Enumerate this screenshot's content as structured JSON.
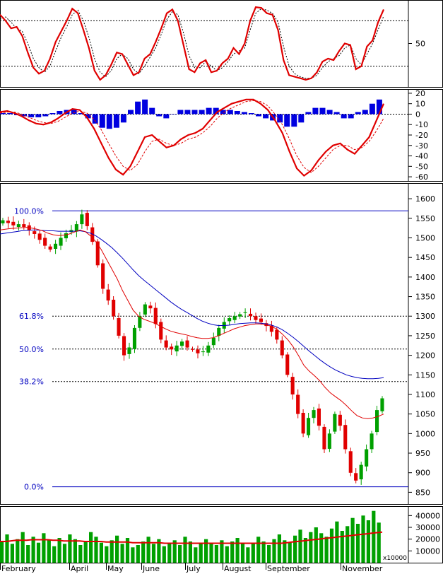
{
  "colors": {
    "up": "#00a000",
    "down": "#e00000",
    "ma_fast": "#e00000",
    "ma_slow": "#0000c0",
    "fib": "#0000c0",
    "hist": "#0000e0",
    "osc_main": "#e00000",
    "frame": "#000000"
  },
  "chart_data": [
    {
      "type": "line",
      "panel": "stochastic",
      "ylim": [
        0,
        100
      ],
      "y_ticks": [
        50
      ],
      "reference_lines": [
        80,
        20
      ],
      "series": [
        {
          "values": [
            88,
            80,
            70,
            72,
            60,
            38,
            18,
            10,
            14,
            30,
            52,
            66,
            80,
            96,
            90,
            68,
            44,
            14,
            2,
            8,
            22,
            38,
            36,
            22,
            8,
            12,
            30,
            36,
            52,
            70,
            90,
            95,
            80,
            48,
            16,
            12,
            24,
            28,
            12,
            14,
            24,
            30,
            44,
            36,
            50,
            80,
            98,
            97,
            90,
            88,
            68,
            28,
            8,
            6,
            4,
            2,
            4,
            12,
            26,
            30,
            28,
            40,
            50,
            48,
            16,
            20,
            46,
            54,
            78,
            95
          ]
        },
        {
          "values": [
            82,
            85,
            78,
            70,
            66,
            50,
            30,
            18,
            12,
            20,
            40,
            58,
            72,
            88,
            94,
            80,
            58,
            30,
            12,
            6,
            14,
            30,
            36,
            30,
            16,
            10,
            20,
            32,
            44,
            62,
            82,
            92,
            88,
            64,
            34,
            18,
            18,
            26,
            20,
            14,
            18,
            26,
            36,
            40,
            44,
            68,
            90,
            96,
            94,
            90,
            78,
            46,
            20,
            10,
            6,
            4,
            4,
            8,
            18,
            26,
            30,
            34,
            44,
            48,
            30,
            22,
            36,
            50,
            68,
            86
          ]
        }
      ]
    },
    {
      "type": "line",
      "panel": "macd",
      "ylim": [
        -64,
        24
      ],
      "y_ticks": [
        20,
        10,
        0,
        -10,
        -20,
        -30,
        -40,
        -50,
        -60
      ],
      "series": [
        {
          "values": [
            2,
            3,
            1,
            -2,
            -6,
            -9,
            -10,
            -8,
            -4,
            1,
            5,
            4,
            -3,
            -14,
            -28,
            -42,
            -53,
            -58,
            -50,
            -36,
            -22,
            -20,
            -26,
            -32,
            -30,
            -24,
            -20,
            -18,
            -14,
            -6,
            2,
            6,
            10,
            12,
            14,
            14,
            10,
            4,
            -6,
            -18,
            -36,
            -52,
            -59,
            -54,
            -44,
            -36,
            -30,
            -28,
            -34,
            -38,
            -30,
            -22,
            -6,
            10
          ]
        },
        {
          "values": [
            1,
            2,
            2,
            0,
            -3,
            -6,
            -8,
            -9,
            -7,
            -3,
            1,
            3,
            1,
            -5,
            -15,
            -28,
            -40,
            -50,
            -54,
            -48,
            -36,
            -26,
            -24,
            -28,
            -30,
            -28,
            -24,
            -22,
            -18,
            -12,
            -4,
            2,
            6,
            9,
            12,
            13,
            12,
            8,
            0,
            -10,
            -24,
            -40,
            -51,
            -56,
            -50,
            -42,
            -34,
            -30,
            -30,
            -34,
            -32,
            -26,
            -16,
            -4
          ]
        },
        {
          "values": [
            1,
            1,
            -1,
            -2,
            -3,
            -3,
            -2,
            1,
            3,
            4,
            4,
            1,
            -4,
            -9,
            -13,
            -14,
            -13,
            -8,
            4,
            12,
            14,
            6,
            -2,
            -4,
            0,
            4,
            4,
            4,
            4,
            6,
            6,
            4,
            4,
            3,
            2,
            1,
            -2,
            -4,
            -6,
            -8,
            -12,
            -12,
            -8,
            2,
            6,
            6,
            4,
            2,
            -4,
            -4,
            2,
            4,
            10,
            14
          ]
        }
      ]
    },
    {
      "type": "line",
      "panel": "price",
      "x_labels": [
        "February",
        "April",
        "May",
        "June",
        "July",
        "August",
        "September",
        "November"
      ],
      "y_ticks": [
        1600,
        1550,
        1500,
        1450,
        1400,
        1350,
        1300,
        1250,
        1200,
        1150,
        1100,
        1050,
        1000,
        950,
        900,
        850
      ],
      "ylim": [
        820,
        1640
      ],
      "fibonacci": [
        {
          "label": "100.0%",
          "value": 1569
        },
        {
          "label": "61.8%",
          "value": 1300
        },
        {
          "label": "50.0%",
          "value": 1216
        },
        {
          "label": "38.2%",
          "value": 1133
        },
        {
          "label": "0.0%",
          "value": 864
        }
      ],
      "close": [
        1545,
        1538,
        1532,
        1535,
        1528,
        1520,
        1510,
        1495,
        1480,
        1470,
        1485,
        1500,
        1512,
        1520,
        1535,
        1560,
        1530,
        1490,
        1430,
        1370,
        1340,
        1300,
        1250,
        1200,
        1220,
        1270,
        1300,
        1330,
        1320,
        1280,
        1240,
        1220,
        1215,
        1225,
        1235,
        1220,
        1215,
        1205,
        1210,
        1225,
        1245,
        1270,
        1285,
        1295,
        1300,
        1305,
        1310,
        1300,
        1290,
        1285,
        1275,
        1260,
        1240,
        1200,
        1150,
        1100,
        1050,
        1000,
        1040,
        1060,
        1020,
        960,
        1000,
        1050,
        1020,
        960,
        900,
        880,
        920,
        960,
        1000,
        1060,
        1090
      ],
      "ma_fast": [
        1520,
        1522,
        1524,
        1525,
        1526,
        1527,
        1525,
        1522,
        1518,
        1512,
        1508,
        1506,
        1507,
        1510,
        1515,
        1520,
        1516,
        1505,
        1490,
        1470,
        1445,
        1420,
        1395,
        1365,
        1340,
        1315,
        1300,
        1292,
        1287,
        1282,
        1275,
        1268,
        1262,
        1258,
        1255,
        1252,
        1248,
        1245,
        1243,
        1243,
        1245,
        1250,
        1256,
        1262,
        1268,
        1272,
        1276,
        1278,
        1280,
        1280,
        1278,
        1274,
        1266,
        1254,
        1240,
        1222,
        1200,
        1175,
        1160,
        1148,
        1135,
        1118,
        1104,
        1094,
        1084,
        1072,
        1058,
        1046,
        1040,
        1038,
        1040,
        1044,
        1050
      ],
      "ma_slow": [
        1510,
        1512,
        1514,
        1516,
        1518,
        1519,
        1520,
        1520,
        1519,
        1518,
        1518,
        1517,
        1517,
        1517,
        1517,
        1518,
        1516,
        1512,
        1505,
        1496,
        1486,
        1475,
        1462,
        1448,
        1433,
        1418,
        1404,
        1392,
        1381,
        1370,
        1359,
        1348,
        1337,
        1327,
        1318,
        1310,
        1302,
        1294,
        1287,
        1282,
        1278,
        1276,
        1276,
        1277,
        1279,
        1281,
        1282,
        1283,
        1283,
        1282,
        1280,
        1277,
        1272,
        1265,
        1256,
        1246,
        1235,
        1223,
        1211,
        1200,
        1189,
        1179,
        1170,
        1162,
        1156,
        1150,
        1146,
        1143,
        1141,
        1140,
        1140,
        1141,
        1143
      ]
    },
    {
      "type": "bar",
      "panel": "volume",
      "ylim": [
        0,
        48000
      ],
      "y_ticks": [
        40000,
        30000,
        20000,
        10000
      ],
      "unit_label": "x10000",
      "values": [
        18000,
        24000,
        16000,
        20000,
        26000,
        15000,
        22000,
        17000,
        25000,
        19000,
        14000,
        21000,
        16000,
        24000,
        20000,
        15000,
        18000,
        26000,
        22000,
        17000,
        14000,
        19000,
        23000,
        16000,
        21000,
        13000,
        15000,
        18000,
        22000,
        16000,
        20000,
        14000,
        17000,
        19000,
        15000,
        22000,
        18000,
        13000,
        16000,
        20000,
        17000,
        15000,
        19000,
        14000,
        18000,
        21000,
        16000,
        13000,
        17000,
        22000,
        18000,
        15000,
        20000,
        24000,
        19000,
        17000,
        23000,
        28000,
        21000,
        26000,
        30000,
        25000,
        22000,
        29000,
        35000,
        27000,
        31000,
        38000,
        33000,
        40000,
        36000,
        44000,
        34000
      ],
      "ma": [
        18000,
        18000,
        18500,
        19000,
        19000,
        19000,
        19500,
        19500,
        19500,
        19500,
        19000,
        19000,
        18500,
        18500,
        18500,
        18500,
        18000,
        18000,
        18000,
        18000,
        17500,
        17500,
        17500,
        17500,
        17500,
        17000,
        17000,
        17000,
        17000,
        17000,
        17000,
        16500,
        16500,
        16500,
        16500,
        16500,
        16500,
        16500,
        16500,
        16500,
        16500,
        16500,
        16500,
        16500,
        16500,
        16500,
        16500,
        16500,
        16500,
        16500,
        16500,
        16500,
        16500,
        16500,
        17000,
        17500,
        18000,
        18500,
        19000,
        19500,
        20000,
        20500,
        21000,
        21500,
        22000,
        22500,
        23000,
        23500,
        24000,
        24500,
        25000,
        25500,
        26000
      ]
    }
  ]
}
